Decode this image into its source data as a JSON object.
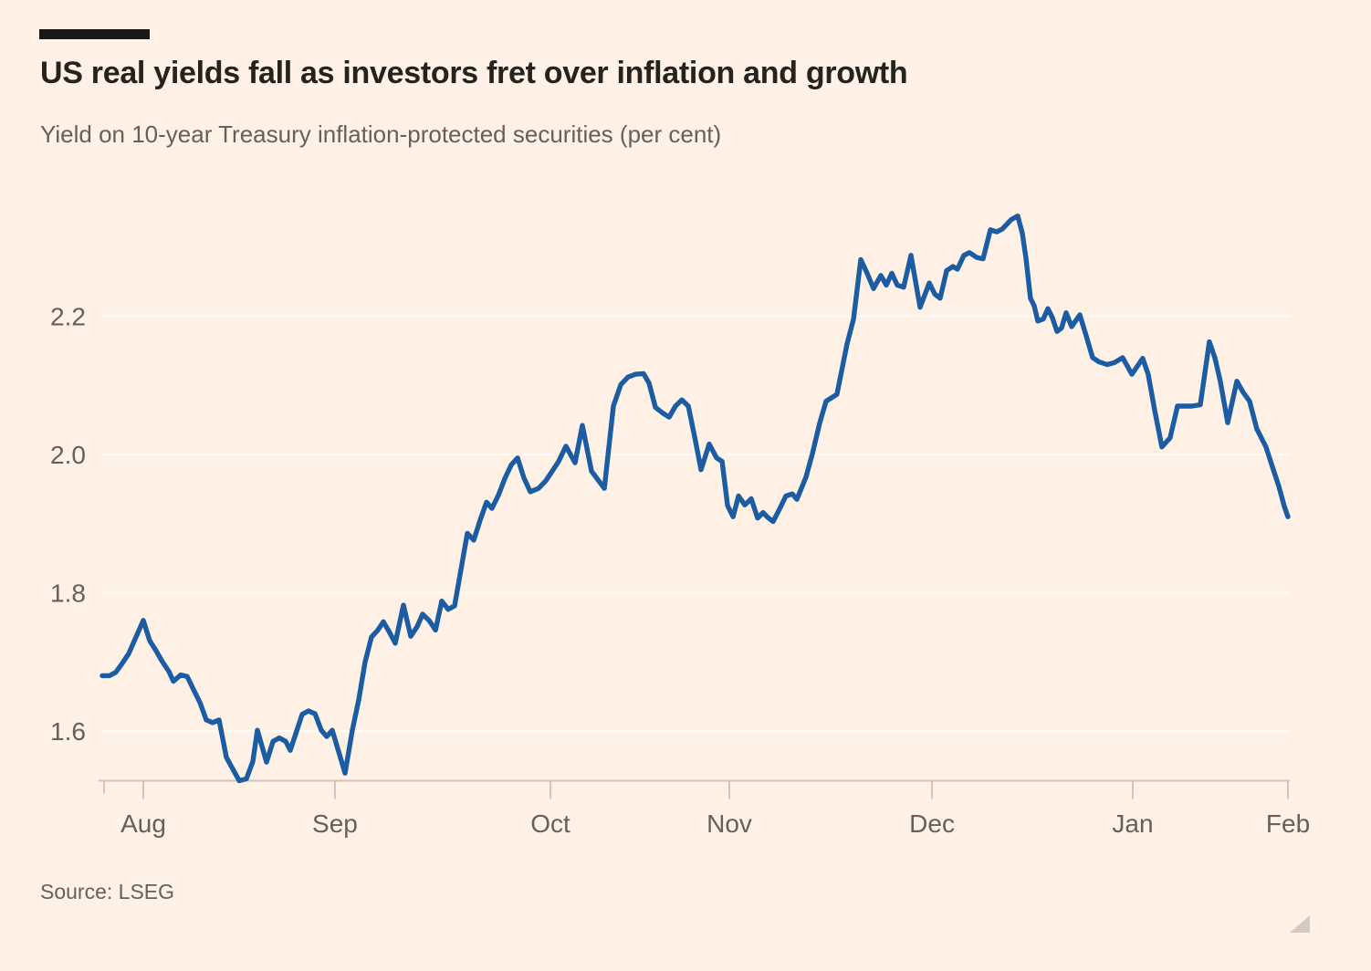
{
  "header": {
    "title": "US real yields fall as investors fret over inflation and growth",
    "subtitle": "Yield on 10-year Treasury inflation-protected securities (per cent)"
  },
  "footer": {
    "source": "Source: LSEG"
  },
  "colors": {
    "background": "#FFF1E5",
    "kicker": "#1A1817",
    "title_text": "#26231F",
    "muted_text": "#66605C",
    "axis": "#D0C5BA",
    "gridline": "rgba(255,255,255,0.65)",
    "line": "#1B5CA3",
    "resize_handle": "#CCC1B6"
  },
  "chart_data": {
    "type": "line",
    "title": "US real yields fall as investors fret over inflation and growth",
    "subtitle": "Yield on 10-year Treasury inflation-protected securities (per cent)",
    "unit": "per cent",
    "grid": "horizontal, faint",
    "legend": "none",
    "ylim": [
      1.53,
      2.4
    ],
    "x_encoding": "fraction of x-axis, late Jul through early Feb",
    "x_axis": {
      "ticks": [
        {
          "label": "",
          "f": 0.0031
        },
        {
          "label": "Aug",
          "f": 0.0361
        },
        {
          "label": "Sep",
          "f": 0.1972
        },
        {
          "label": "Oct",
          "f": 0.3784
        },
        {
          "label": "Nov",
          "f": 0.5288
        },
        {
          "label": "Dec",
          "f": 0.6992
        },
        {
          "label": "Jan",
          "f": 0.868
        },
        {
          "label": "Feb",
          "f": 0.9985
        }
      ]
    },
    "y_axis": {
      "ticks": [
        {
          "label": "1.6",
          "value": 1.6
        },
        {
          "label": "1.8",
          "value": 1.8
        },
        {
          "label": "2.0",
          "value": 2.0
        },
        {
          "label": "2.2",
          "value": 2.2
        }
      ]
    },
    "series": [
      {
        "name": "Yield on 10-year Treasury inflation-protected securities",
        "points": [
          [
            0.0015,
            1.68
          ],
          [
            0.0077,
            1.68
          ],
          [
            0.013,
            1.685
          ],
          [
            0.0184,
            1.698
          ],
          [
            0.0238,
            1.712
          ],
          [
            0.0292,
            1.733
          ],
          [
            0.0361,
            1.76
          ],
          [
            0.0414,
            1.731
          ],
          [
            0.0468,
            1.716
          ],
          [
            0.0522,
            1.7
          ],
          [
            0.0576,
            1.686
          ],
          [
            0.0614,
            1.672
          ],
          [
            0.0675,
            1.681
          ],
          [
            0.0729,
            1.679
          ],
          [
            0.0783,
            1.66
          ],
          [
            0.0837,
            1.641
          ],
          [
            0.089,
            1.616
          ],
          [
            0.0944,
            1.612
          ],
          [
            0.0998,
            1.616
          ],
          [
            0.1059,
            1.562
          ],
          [
            0.1113,
            1.545
          ],
          [
            0.1167,
            1.528
          ],
          [
            0.1228,
            1.531
          ],
          [
            0.1282,
            1.556
          ],
          [
            0.132,
            1.601
          ],
          [
            0.1397,
            1.555
          ],
          [
            0.1451,
            1.585
          ],
          [
            0.1504,
            1.59
          ],
          [
            0.1558,
            1.585
          ],
          [
            0.1596,
            1.572
          ],
          [
            0.165,
            1.6
          ],
          [
            0.1696,
            1.624
          ],
          [
            0.175,
            1.629
          ],
          [
            0.1804,
            1.625
          ],
          [
            0.1857,
            1.601
          ],
          [
            0.1903,
            1.592
          ],
          [
            0.1949,
            1.601
          ],
          [
            0.2003,
            1.57
          ],
          [
            0.2057,
            1.539
          ],
          [
            0.2118,
            1.601
          ],
          [
            0.2172,
            1.645
          ],
          [
            0.2226,
            1.7
          ],
          [
            0.2279,
            1.736
          ],
          [
            0.2333,
            1.746
          ],
          [
            0.2379,
            1.758
          ],
          [
            0.2433,
            1.742
          ],
          [
            0.2479,
            1.727
          ],
          [
            0.2548,
            1.782
          ],
          [
            0.2609,
            1.737
          ],
          [
            0.2663,
            1.751
          ],
          [
            0.2709,
            1.769
          ],
          [
            0.2763,
            1.76
          ],
          [
            0.2817,
            1.746
          ],
          [
            0.287,
            1.788
          ],
          [
            0.2924,
            1.776
          ],
          [
            0.2978,
            1.781
          ],
          [
            0.3085,
            1.886
          ],
          [
            0.3139,
            1.876
          ],
          [
            0.3193,
            1.905
          ],
          [
            0.3246,
            1.931
          ],
          [
            0.3292,
            1.922
          ],
          [
            0.3346,
            1.941
          ],
          [
            0.34,
            1.965
          ],
          [
            0.3454,
            1.985
          ],
          [
            0.3507,
            1.995
          ],
          [
            0.3561,
            1.966
          ],
          [
            0.3615,
            1.946
          ],
          [
            0.3684,
            1.951
          ],
          [
            0.3745,
            1.962
          ],
          [
            0.3799,
            1.976
          ],
          [
            0.3853,
            1.99
          ],
          [
            0.3914,
            2.012
          ],
          [
            0.3991,
            1.988
          ],
          [
            0.4052,
            2.042
          ],
          [
            0.4129,
            1.976
          ],
          [
            0.4237,
            1.951
          ],
          [
            0.4313,
            2.07
          ],
          [
            0.4375,
            2.101
          ],
          [
            0.4436,
            2.112
          ],
          [
            0.4498,
            2.116
          ],
          [
            0.4567,
            2.117
          ],
          [
            0.4613,
            2.103
          ],
          [
            0.4667,
            2.068
          ],
          [
            0.4728,
            2.06
          ],
          [
            0.4782,
            2.054
          ],
          [
            0.4835,
            2.07
          ],
          [
            0.4889,
            2.079
          ],
          [
            0.4943,
            2.07
          ],
          [
            0.4997,
            2.025
          ],
          [
            0.505,
            1.978
          ],
          [
            0.5119,
            2.015
          ],
          [
            0.5181,
            1.995
          ],
          [
            0.5227,
            1.99
          ],
          [
            0.5273,
            1.926
          ],
          [
            0.5319,
            1.91
          ],
          [
            0.5365,
            1.94
          ],
          [
            0.5418,
            1.927
          ],
          [
            0.5472,
            1.936
          ],
          [
            0.5526,
            1.908
          ],
          [
            0.5572,
            1.916
          ],
          [
            0.561,
            1.909
          ],
          [
            0.5656,
            1.903
          ],
          [
            0.571,
            1.921
          ],
          [
            0.5764,
            1.94
          ],
          [
            0.5817,
            1.943
          ],
          [
            0.5856,
            1.935
          ],
          [
            0.5932,
            1.967
          ],
          [
            0.5986,
            2.001
          ],
          [
            0.6048,
            2.046
          ],
          [
            0.6101,
            2.077
          ],
          [
            0.6193,
            2.087
          ],
          [
            0.6278,
            2.16
          ],
          [
            0.6332,
            2.196
          ],
          [
            0.6393,
            2.282
          ],
          [
            0.6447,
            2.262
          ],
          [
            0.65,
            2.24
          ],
          [
            0.6562,
            2.259
          ],
          [
            0.6608,
            2.245
          ],
          [
            0.6654,
            2.262
          ],
          [
            0.67,
            2.245
          ],
          [
            0.6754,
            2.242
          ],
          [
            0.6815,
            2.288
          ],
          [
            0.6892,
            2.213
          ],
          [
            0.6969,
            2.248
          ],
          [
            0.7015,
            2.232
          ],
          [
            0.7061,
            2.226
          ],
          [
            0.7115,
            2.266
          ],
          [
            0.7168,
            2.272
          ],
          [
            0.7206,
            2.268
          ],
          [
            0.726,
            2.288
          ],
          [
            0.7306,
            2.292
          ],
          [
            0.7368,
            2.285
          ],
          [
            0.7421,
            2.283
          ],
          [
            0.7483,
            2.325
          ],
          [
            0.7536,
            2.322
          ],
          [
            0.7582,
            2.326
          ],
          [
            0.7659,
            2.34
          ],
          [
            0.7713,
            2.345
          ],
          [
            0.7751,
            2.32
          ],
          [
            0.7782,
            2.284
          ],
          [
            0.782,
            2.226
          ],
          [
            0.7851,
            2.215
          ],
          [
            0.7882,
            2.193
          ],
          [
            0.7928,
            2.196
          ],
          [
            0.7966,
            2.211
          ],
          [
            0.8004,
            2.198
          ],
          [
            0.8043,
            2.178
          ],
          [
            0.8081,
            2.183
          ],
          [
            0.812,
            2.205
          ],
          [
            0.8166,
            2.185
          ],
          [
            0.8235,
            2.202
          ],
          [
            0.8288,
            2.172
          ],
          [
            0.8342,
            2.14
          ],
          [
            0.8396,
            2.134
          ],
          [
            0.8465,
            2.13
          ],
          [
            0.8526,
            2.133
          ],
          [
            0.8595,
            2.14
          ],
          [
            0.8672,
            2.116
          ],
          [
            0.8764,
            2.139
          ],
          [
            0.881,
            2.116
          ],
          [
            0.8864,
            2.064
          ],
          [
            0.8925,
            2.011
          ],
          [
            0.8994,
            2.024
          ],
          [
            0.9056,
            2.07
          ],
          [
            0.9117,
            2.07
          ],
          [
            0.9178,
            2.07
          ],
          [
            0.9248,
            2.072
          ],
          [
            0.9324,
            2.163
          ],
          [
            0.937,
            2.14
          ],
          [
            0.9416,
            2.106
          ],
          [
            0.9478,
            2.046
          ],
          [
            0.9555,
            2.106
          ],
          [
            0.9608,
            2.09
          ],
          [
            0.9662,
            2.077
          ],
          [
            0.9723,
            2.037
          ],
          [
            0.98,
            2.011
          ],
          [
            0.9854,
            1.982
          ],
          [
            0.9908,
            1.954
          ],
          [
            0.9954,
            1.925
          ],
          [
            0.9985,
            1.91
          ]
        ]
      }
    ]
  }
}
